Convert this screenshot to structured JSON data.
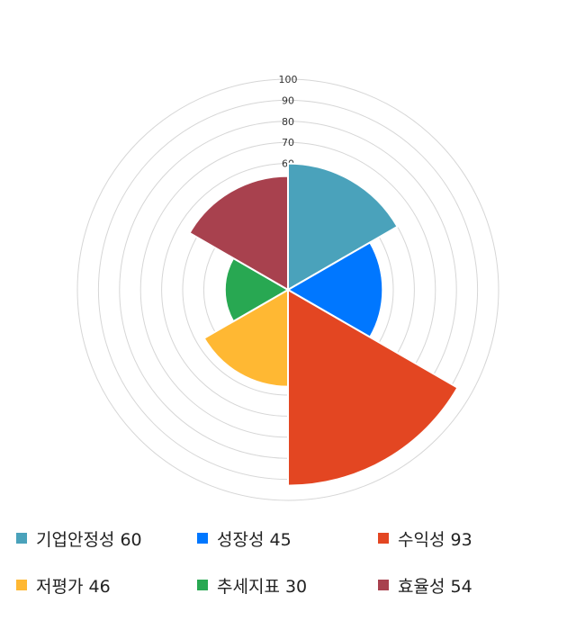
{
  "chart_data": {
    "type": "polarArea",
    "categories": [
      "기업안정성",
      "성장성",
      "수익성",
      "저평가",
      "추세지표",
      "효율성"
    ],
    "values": [
      60,
      45,
      93,
      46,
      30,
      54
    ],
    "colors": [
      "#4aa2bb",
      "#0077ff",
      "#e34622",
      "#ffb833",
      "#28a852",
      "#a8414e"
    ],
    "rlim": [
      0,
      100
    ],
    "ticks": [
      10,
      20,
      30,
      40,
      50,
      60,
      70,
      80,
      90,
      100
    ],
    "grid": true,
    "legend_position": "bottom",
    "legend_labels": [
      "기업안정성 60",
      "성장성 45",
      "수익성 93",
      "저평가 46",
      "추세지표 30",
      "효율성 54"
    ]
  }
}
